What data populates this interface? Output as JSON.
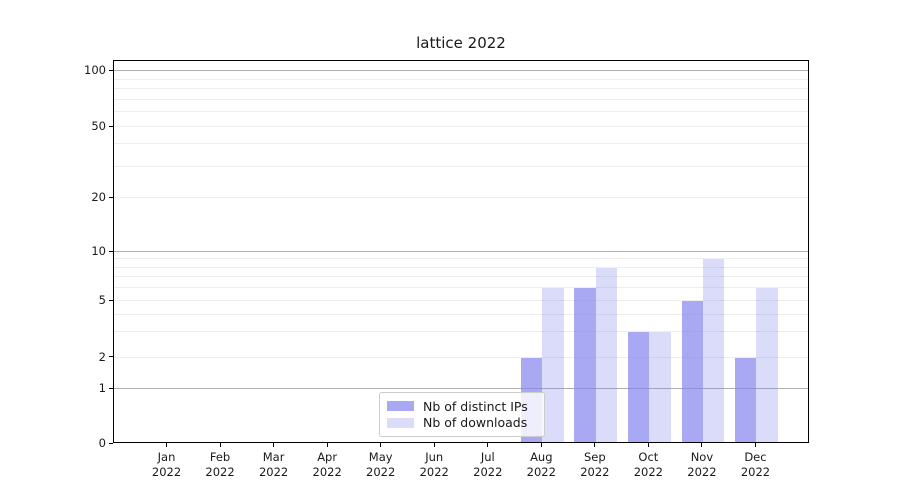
{
  "title": "lattice 2022",
  "chart_data": {
    "type": "bar",
    "title": "lattice 2022",
    "categories": [
      "Jan 2022",
      "Feb 2022",
      "Mar 2022",
      "Apr 2022",
      "May 2022",
      "Jun 2022",
      "Jul 2022",
      "Aug 2022",
      "Sep 2022",
      "Oct 2022",
      "Nov 2022",
      "Dec 2022"
    ],
    "series": [
      {
        "name": "Nb of distinct IPs",
        "base_color": "#8888ee",
        "alpha": 0.72,
        "values": [
          0,
          0,
          0,
          0,
          0,
          0,
          0,
          2,
          6,
          3,
          5,
          2
        ]
      },
      {
        "name": "Nb of downloads",
        "base_color": "#8888ee",
        "alpha": 0.3,
        "values": [
          0,
          0,
          0,
          0,
          0,
          0,
          0,
          6,
          8,
          3,
          9,
          6
        ]
      }
    ],
    "xlabel": "",
    "ylabel": "",
    "yscale": "asinh",
    "ylim": [
      0,
      130
    ],
    "y_tick_labels": [
      "0",
      "1",
      "2",
      "5",
      "10",
      "20",
      "50",
      "100"
    ],
    "y_tick_values": [
      0,
      1,
      2,
      5,
      10,
      20,
      50,
      100
    ],
    "y_major_gridlines": [
      1,
      10,
      100
    ],
    "y_minor_gridlines": [
      2,
      3,
      4,
      5,
      6,
      7,
      8,
      9,
      20,
      30,
      40,
      50,
      60,
      70,
      80,
      90
    ],
    "grid": "both",
    "legend_position": "lower center"
  },
  "colors": {
    "bar_distinct_ips": "#a9a9f2",
    "bar_downloads": "#dbdbfa",
    "grid_major": "#b3b3b3",
    "grid_minor": "#ececec",
    "spine": "#000000",
    "text": "#1a1a1a"
  }
}
